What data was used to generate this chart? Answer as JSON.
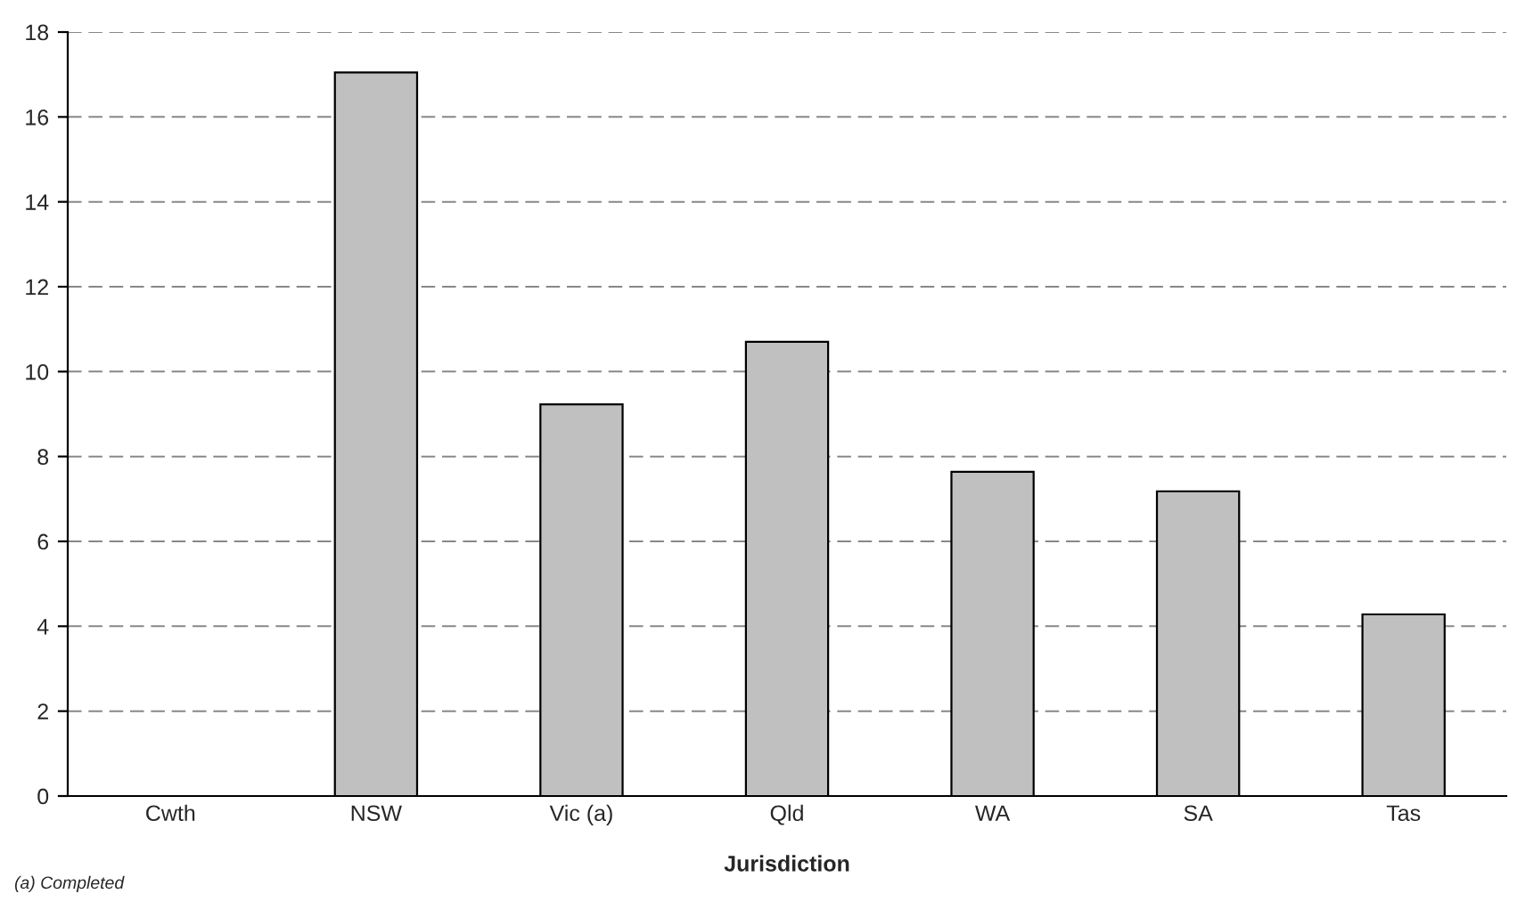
{
  "chart_data": {
    "type": "bar",
    "xlabel": "Jurisdiction",
    "categories": [
      "Cwth",
      "NSW",
      "Vic (a)",
      "Qld",
      "WA",
      "SA",
      "Tas"
    ],
    "values": [
      null,
      17.05,
      9.23,
      10.7,
      7.64,
      7.18,
      4.28
    ],
    "color": "#c0c0c0",
    "ylim": [
      0,
      18
    ],
    "yticks": [
      0,
      2,
      4,
      6,
      8,
      10,
      12,
      14,
      16,
      18
    ],
    "grid": "y",
    "line_style": "dashed",
    "annotations": [
      "(a) Completed"
    ]
  }
}
